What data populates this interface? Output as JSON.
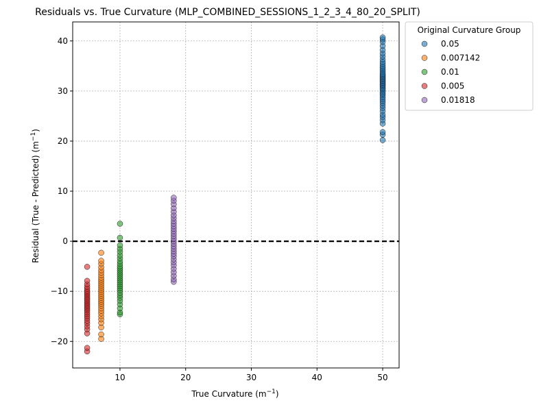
{
  "chart_data": {
    "type": "scatter",
    "title": "Residuals vs. True Curvature (MLP_COMBINED_SESSIONS_1_2_3_4_80_20_SPLIT)",
    "xlabel": "True Curvature (m",
    "xlabel_sup": "−1",
    "ylabel": "Residual (True - Predicted) (m",
    "ylabel_sup": "−1",
    "xlim": [
      2.8,
      52.5
    ],
    "ylim": [
      -25.3,
      43.8
    ],
    "xticks": [
      10,
      20,
      30,
      40,
      50
    ],
    "yticks": [
      -20,
      -10,
      0,
      10,
      20,
      30,
      40
    ],
    "xtick_labels": [
      "10",
      "20",
      "30",
      "40",
      "50"
    ],
    "ytick_labels": [
      "−20",
      "−10",
      "0",
      "10",
      "20",
      "30",
      "40"
    ],
    "grid": true,
    "reference_line": {
      "y": 0,
      "style": "dashed"
    },
    "legend": {
      "title": "Original Curvature Group",
      "placement": "outside-top-right"
    },
    "series": [
      {
        "name": "0.05",
        "color": "#1f77b4",
        "x": 50,
        "y": [
          20.2,
          21.3,
          21.8,
          23.5,
          24.2,
          24.8,
          25.3,
          26.0,
          26.6,
          27.1,
          27.6,
          28.0,
          28.4,
          28.8,
          29.2,
          29.5,
          29.8,
          30.1,
          30.4,
          30.6,
          30.9,
          31.1,
          31.3,
          31.5,
          31.7,
          31.9,
          32.1,
          32.3,
          32.5,
          32.7,
          32.9,
          33.1,
          33.3,
          33.5,
          33.8,
          34.1,
          34.4,
          34.7,
          35.0,
          35.4,
          35.8,
          36.3,
          36.9,
          37.5,
          38.2,
          39.0,
          39.8,
          40.3,
          40.7
        ]
      },
      {
        "name": "0.007142",
        "color": "#ff7f0e",
        "x": 7.142,
        "y": [
          -19.5,
          -18.6,
          -17.2,
          -16.3,
          -15.6,
          -15.0,
          -14.4,
          -13.9,
          -13.4,
          -12.9,
          -12.5,
          -12.1,
          -11.7,
          -11.3,
          -10.9,
          -10.5,
          -10.1,
          -9.7,
          -9.3,
          -8.9,
          -8.5,
          -8.1,
          -7.7,
          -7.3,
          -6.8,
          -6.3,
          -5.8,
          -5.2,
          -4.5,
          -3.9,
          -2.3
        ]
      },
      {
        "name": "0.01",
        "color": "#2ca02c",
        "x": 10,
        "y": [
          -14.6,
          -14.2,
          -13.4,
          -12.6,
          -11.9,
          -11.3,
          -10.8,
          -10.3,
          -9.8,
          -9.4,
          -9.0,
          -8.6,
          -8.2,
          -7.8,
          -7.4,
          -7.0,
          -6.6,
          -6.2,
          -5.8,
          -5.4,
          -5.0,
          -4.5,
          -4.0,
          -3.4,
          -2.8,
          -2.1,
          -1.5,
          -0.8,
          0.7,
          3.5
        ]
      },
      {
        "name": "0.005",
        "color": "#d62728",
        "x": 5,
        "y": [
          -22.0,
          -21.3,
          -18.4,
          -17.6,
          -17.0,
          -16.4,
          -15.9,
          -15.4,
          -15.0,
          -14.6,
          -14.2,
          -13.8,
          -13.5,
          -13.2,
          -12.9,
          -12.6,
          -12.3,
          -12.0,
          -11.7,
          -11.4,
          -11.1,
          -10.8,
          -10.5,
          -10.2,
          -9.9,
          -9.5,
          -9.1,
          -8.6,
          -7.9,
          -5.1
        ]
      },
      {
        "name": "0.01818",
        "color": "#9467bd",
        "x": 18.18,
        "y": [
          -8.1,
          -7.6,
          -6.9,
          -6.2,
          -5.5,
          -4.8,
          -4.2,
          -3.6,
          -3.0,
          -2.5,
          -2.0,
          -1.5,
          -1.0,
          -0.5,
          0.0,
          0.5,
          1.0,
          1.5,
          2.0,
          2.5,
          3.0,
          3.5,
          4.0,
          4.6,
          5.2,
          5.9,
          6.6,
          7.4,
          8.1,
          8.7
        ]
      }
    ]
  }
}
